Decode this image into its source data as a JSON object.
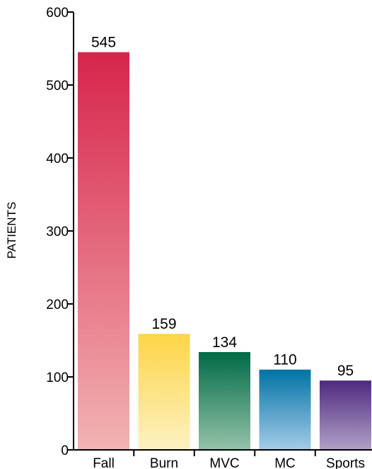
{
  "chart_data": {
    "type": "bar",
    "title": "",
    "xlabel": "",
    "ylabel": "PATIENTS",
    "ylim": [
      0,
      600
    ],
    "yticks": [
      0,
      100,
      200,
      300,
      400,
      500,
      600
    ],
    "yticks_labels": [
      "0",
      "100",
      "200",
      "300",
      "400",
      "500",
      "600"
    ],
    "grid": false,
    "categories": [
      "Fall",
      "Burn",
      "MVC",
      "MC",
      "Sports"
    ],
    "values": [
      545,
      159,
      134,
      110,
      95
    ],
    "value_labels": [
      "545",
      "159",
      "134",
      "110",
      "95"
    ],
    "colors": [
      {
        "top": "#d7244a",
        "bottom": "#f2b3b3"
      },
      {
        "top": "#fdd547",
        "bottom": "#fdf1c2"
      },
      {
        "top": "#006a45",
        "bottom": "#95c3a9"
      },
      {
        "top": "#0073a4",
        "bottom": "#a5cbe8"
      },
      {
        "top": "#4e2a7f",
        "bottom": "#b2a0c7"
      }
    ]
  }
}
